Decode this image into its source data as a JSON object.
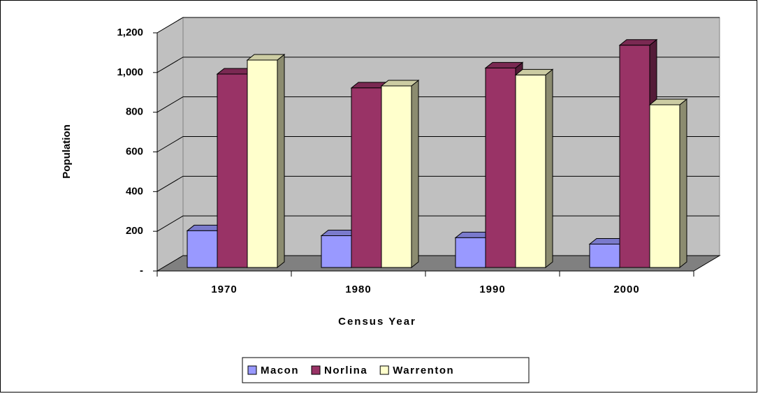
{
  "chart_data": {
    "type": "bar3d",
    "x_label": "Census Year",
    "y_label": "Population",
    "categories": [
      "1970",
      "1980",
      "1990",
      "2000"
    ],
    "series": [
      {
        "name": "Macon",
        "color": "#9999ff",
        "values": [
          185,
          160,
          150,
          118
        ]
      },
      {
        "name": "Norlina",
        "color": "#993366",
        "values": [
          975,
          905,
          1005,
          1120
        ]
      },
      {
        "name": "Warrenton",
        "color": "#ffffcc",
        "values": [
          1045,
          915,
          970,
          820
        ]
      }
    ],
    "ylim": [
      0,
      1200
    ],
    "yticks": [
      {
        "value": 0,
        "label": "-"
      },
      200,
      400,
      600,
      800,
      {
        "value": 1000,
        "label": "1,000"
      },
      {
        "value": 1200,
        "label": "1,200"
      }
    ],
    "grid": true,
    "legend": "bottom"
  }
}
